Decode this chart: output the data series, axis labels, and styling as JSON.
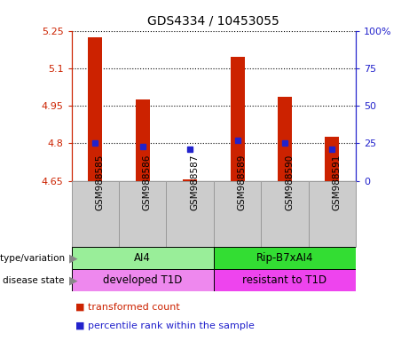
{
  "title": "GDS4334 / 10453055",
  "samples": [
    "GSM988585",
    "GSM988586",
    "GSM988587",
    "GSM988589",
    "GSM988590",
    "GSM988591"
  ],
  "bar_bottom": 4.65,
  "bar_heights": [
    5.225,
    4.975,
    4.655,
    5.145,
    4.985,
    4.825
  ],
  "percentile_values": [
    4.802,
    4.786,
    4.775,
    4.812,
    4.8,
    4.775
  ],
  "ylim": [
    4.65,
    5.25
  ],
  "yticks": [
    4.65,
    4.8,
    4.95,
    5.1,
    5.25
  ],
  "ytick_labels": [
    "4.65",
    "4.8",
    "4.95",
    "5.1",
    "5.25"
  ],
  "right_yticks": [
    0,
    25,
    50,
    75,
    100
  ],
  "right_ytick_labels": [
    "0",
    "25",
    "50",
    "75",
    "100%"
  ],
  "bar_color": "#cc2200",
  "dot_color": "#2222cc",
  "genotype_groups": [
    {
      "label": "AI4",
      "samples": [
        0,
        1,
        2
      ],
      "color": "#99ee99"
    },
    {
      "label": "Rip-B7xAI4",
      "samples": [
        3,
        4,
        5
      ],
      "color": "#33dd33"
    }
  ],
  "disease_groups": [
    {
      "label": "developed T1D",
      "samples": [
        0,
        1,
        2
      ],
      "color": "#ee88ee"
    },
    {
      "label": "resistant to T1D",
      "samples": [
        3,
        4,
        5
      ],
      "color": "#ee44ee"
    }
  ],
  "genotype_label": "genotype/variation",
  "disease_label": "disease state",
  "legend_items": [
    {
      "label": "transformed count",
      "color": "#cc2200"
    },
    {
      "label": "percentile rank within the sample",
      "color": "#2222cc"
    }
  ],
  "left_axis_color": "#cc2200",
  "right_axis_color": "#2222cc",
  "sample_area_color": "#cccccc",
  "sample_area_border": "#999999",
  "fig_width": 4.61,
  "fig_height": 3.84,
  "dpi": 100
}
